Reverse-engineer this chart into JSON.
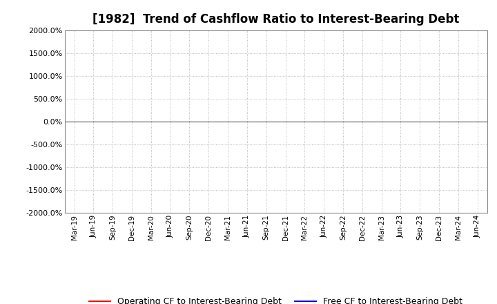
{
  "title": "[1982]  Trend of Cashflow Ratio to Interest-Bearing Debt",
  "ylim": [
    -2000,
    2000
  ],
  "yticks": [
    -2000,
    -1500,
    -1000,
    -500,
    0,
    500,
    1000,
    1500,
    2000
  ],
  "ytick_labels": [
    "-2000.0%",
    "-1500.0%",
    "-1000.0%",
    "-500.0%",
    "0.0%",
    "500.0%",
    "1000.0%",
    "1500.0%",
    "2000.0%"
  ],
  "x_labels": [
    "Mar-19",
    "Jun-19",
    "Sep-19",
    "Dec-19",
    "Mar-20",
    "Jun-20",
    "Sep-20",
    "Dec-20",
    "Mar-21",
    "Jun-21",
    "Sep-21",
    "Dec-21",
    "Mar-22",
    "Jun-22",
    "Sep-22",
    "Dec-22",
    "Mar-23",
    "Jun-23",
    "Sep-23",
    "Dec-23",
    "Mar-24",
    "Jun-24"
  ],
  "operating_cf": [
    null,
    null,
    null,
    null,
    null,
    null,
    null,
    null,
    null,
    null,
    null,
    null,
    null,
    null,
    null,
    null,
    null,
    null,
    null,
    null,
    null,
    null
  ],
  "free_cf": [
    null,
    null,
    null,
    null,
    null,
    null,
    null,
    null,
    null,
    null,
    null,
    null,
    null,
    null,
    null,
    null,
    null,
    null,
    null,
    null,
    null,
    null
  ],
  "operating_cf_color": "#FF0000",
  "free_cf_color": "#0000FF",
  "grid_color": "#aaaaaa",
  "zero_line_color": "#555555",
  "background_color": "#FFFFFF",
  "title_fontsize": 12,
  "legend_labels": [
    "Operating CF to Interest-Bearing Debt",
    "Free CF to Interest-Bearing Debt"
  ],
  "line_width": 1.5
}
